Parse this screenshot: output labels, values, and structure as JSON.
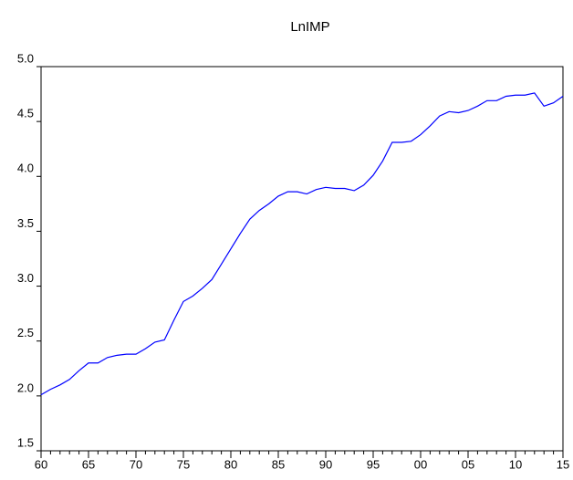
{
  "chart_data": {
    "type": "line",
    "title": "LnIMP",
    "x": [
      1960,
      1961,
      1962,
      1963,
      1964,
      1965,
      1966,
      1967,
      1968,
      1969,
      1970,
      1971,
      1972,
      1973,
      1974,
      1975,
      1976,
      1977,
      1978,
      1979,
      1980,
      1981,
      1982,
      1983,
      1984,
      1985,
      1986,
      1987,
      1988,
      1989,
      1990,
      1991,
      1992,
      1993,
      1994,
      1995,
      1996,
      1997,
      1998,
      1999,
      2000,
      2001,
      2002,
      2003,
      2004,
      2005,
      2006,
      2007,
      2008,
      2009,
      2010,
      2011,
      2012,
      2013,
      2014,
      2015
    ],
    "values": [
      2.01,
      2.06,
      2.1,
      2.15,
      2.23,
      2.3,
      2.3,
      2.35,
      2.37,
      2.38,
      2.38,
      2.43,
      2.49,
      2.51,
      2.69,
      2.86,
      2.91,
      2.98,
      3.06,
      3.2,
      3.34,
      3.48,
      3.61,
      3.69,
      3.75,
      3.82,
      3.86,
      3.86,
      3.84,
      3.88,
      3.9,
      3.89,
      3.89,
      3.87,
      3.92,
      4.01,
      4.14,
      4.31,
      4.31,
      4.32,
      4.38,
      4.46,
      4.55,
      4.59,
      4.58,
      4.6,
      4.64,
      4.69,
      4.69,
      4.73,
      4.74,
      4.74,
      4.76,
      4.64,
      4.67,
      4.73
    ],
    "color": "#0000ff",
    "xlim": [
      1960,
      2015
    ],
    "xticks": [
      {
        "value": 1960,
        "label": "60"
      },
      {
        "value": 1965,
        "label": "65"
      },
      {
        "value": 1970,
        "label": "70"
      },
      {
        "value": 1975,
        "label": "75"
      },
      {
        "value": 1980,
        "label": "80"
      },
      {
        "value": 1985,
        "label": "85"
      },
      {
        "value": 1990,
        "label": "90"
      },
      {
        "value": 1995,
        "label": "95"
      },
      {
        "value": 2000,
        "label": "00"
      },
      {
        "value": 2005,
        "label": "05"
      },
      {
        "value": 2010,
        "label": "10"
      },
      {
        "value": 2015,
        "label": "15"
      }
    ],
    "ylim": [
      1.5,
      5.0
    ],
    "yticks": [
      1.5,
      {
        "value": 2.0,
        "label": "2.0"
      },
      2.5,
      {
        "value": 3.0,
        "label": "3.0"
      },
      3.5,
      {
        "value": 4.0,
        "label": "4.0"
      },
      4.5,
      {
        "value": 5.0,
        "label": "5.0"
      }
    ]
  }
}
